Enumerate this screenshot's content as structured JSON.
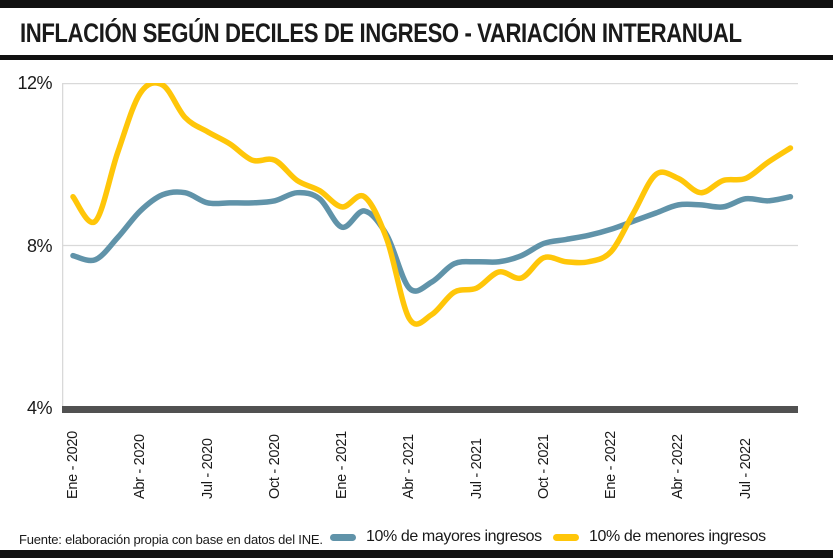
{
  "panel": {
    "title": "INFLACIÓN SEGÚN DECILES DE INGRESO - VARIACIÓN INTERANUAL"
  },
  "footer": {
    "source_note": "Fuente: elaboración propia con base en datos del INE.",
    "legend": [
      {
        "label": "10% de mayores ingresos",
        "color": "#6093A9"
      },
      {
        "label": "10% de menores ingresos",
        "color": "#FFC609"
      }
    ]
  },
  "colors": {
    "gridline": "#D9D9D9",
    "axis_bar": "#515151",
    "frame_bar": "#111111",
    "text": "#1A1A1A"
  },
  "chart_data": {
    "type": "line",
    "title": "INFLACIÓN SEGÚN DECILES DE INGRESO - VARIACIÓN INTERANUAL",
    "xlabel": "",
    "ylabel": "",
    "ylim": [
      4,
      12
    ],
    "grid": "horizontal",
    "legend_position": "bottom",
    "months": [
      "Ene 2020",
      "Feb 2020",
      "Mar 2020",
      "Abr 2020",
      "May 2020",
      "Jun 2020",
      "Jul 2020",
      "Ago 2020",
      "Sep 2020",
      "Oct 2020",
      "Nov 2020",
      "Dic 2020",
      "Ene 2021",
      "Feb 2021",
      "Mar 2021",
      "Abr 2021",
      "May 2021",
      "Jun 2021",
      "Jul 2021",
      "Ago 2021",
      "Sep 2021",
      "Oct 2021",
      "Nov 2021",
      "Dic 2021",
      "Ene 2022",
      "Feb 2022",
      "Mar 2022",
      "Abr 2022",
      "May 2022",
      "Jun 2022",
      "Jul 2022",
      "Ago 2022",
      "Sep 2022"
    ],
    "yticks": [
      {
        "label": "12%",
        "value": 12
      },
      {
        "label": "8%",
        "value": 8
      },
      {
        "label": "4%",
        "value": 4
      }
    ],
    "xticks": [
      {
        "label": "Ene - 2020",
        "month": 0
      },
      {
        "label": "Abr - 2020",
        "month": 3
      },
      {
        "label": "Jul - 2020",
        "month": 6
      },
      {
        "label": "Oct - 2020",
        "month": 9
      },
      {
        "label": "Ene - 2021",
        "month": 12
      },
      {
        "label": "Abr - 2021",
        "month": 15
      },
      {
        "label": "Jul - 2021",
        "month": 18
      },
      {
        "label": "Oct - 2021",
        "month": 21
      },
      {
        "label": "Ene - 2022",
        "month": 24
      },
      {
        "label": "Abr - 2022",
        "month": 27
      },
      {
        "label": "Jul - 2022",
        "month": 30
      }
    ],
    "series": [
      {
        "name": "10% de mayores ingresos",
        "color": "#6093A9",
        "values": [
          7.75,
          7.65,
          8.2,
          8.85,
          9.25,
          9.3,
          9.05,
          9.05,
          9.05,
          9.1,
          9.3,
          9.15,
          8.45,
          8.85,
          8.25,
          6.95,
          7.1,
          7.55,
          7.6,
          7.6,
          7.75,
          8.05,
          8.15,
          8.25,
          8.4,
          8.6,
          8.8,
          9.0,
          9.0,
          8.95,
          9.15,
          9.1,
          9.2
        ]
      },
      {
        "name": "10% de menores ingresos",
        "color": "#FFC609",
        "values": [
          9.2,
          8.6,
          10.3,
          11.75,
          11.95,
          11.15,
          10.8,
          10.5,
          10.1,
          10.1,
          9.6,
          9.35,
          8.95,
          9.2,
          8.15,
          6.2,
          6.3,
          6.85,
          6.95,
          7.35,
          7.2,
          7.7,
          7.6,
          7.6,
          7.85,
          8.8,
          9.75,
          9.65,
          9.3,
          9.6,
          9.65,
          10.05,
          10.4
        ]
      }
    ]
  }
}
